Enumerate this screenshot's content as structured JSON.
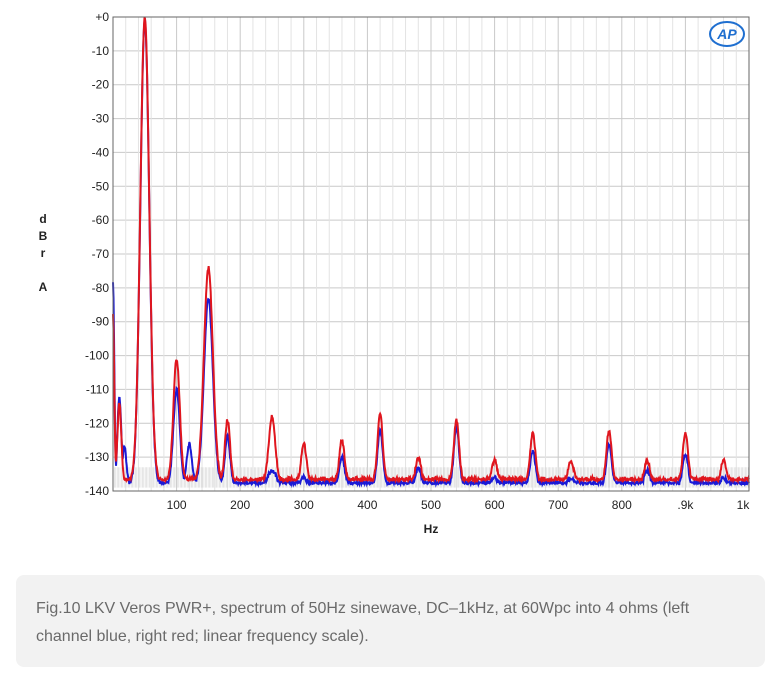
{
  "chart_data": {
    "type": "line",
    "title": "",
    "xlabel": "Hz",
    "ylabel": [
      "d",
      "B",
      "r",
      "",
      "A"
    ],
    "xlim": [
      0,
      1000
    ],
    "ylim": [
      -140,
      0
    ],
    "grid": true,
    "x_ticks": [
      {
        "value": 100,
        "label": "100"
      },
      {
        "value": 200,
        "label": "200"
      },
      {
        "value": 300,
        "label": "300"
      },
      {
        "value": 400,
        "label": "400"
      },
      {
        "value": 500,
        "label": "500"
      },
      {
        "value": 600,
        "label": "600"
      },
      {
        "value": 700,
        "label": "700"
      },
      {
        "value": 800,
        "label": "800"
      },
      {
        "value": 900,
        "label": ".9k"
      },
      {
        "value": 1000,
        "label": "1k"
      }
    ],
    "y_ticks": [
      {
        "value": 0,
        "label": "+0"
      },
      {
        "value": -10,
        "label": "-10"
      },
      {
        "value": -20,
        "label": "-20"
      },
      {
        "value": -30,
        "label": "-30"
      },
      {
        "value": -40,
        "label": "-40"
      },
      {
        "value": -50,
        "label": "-50"
      },
      {
        "value": -60,
        "label": "-60"
      },
      {
        "value": -70,
        "label": "-70"
      },
      {
        "value": -80,
        "label": "-80"
      },
      {
        "value": -90,
        "label": "-90"
      },
      {
        "value": -100,
        "label": "-100"
      },
      {
        "value": -110,
        "label": "-110"
      },
      {
        "value": -120,
        "label": "-120"
      },
      {
        "value": -130,
        "label": "-130"
      },
      {
        "value": -140,
        "label": "-140"
      }
    ],
    "baseline": -138,
    "series": [
      {
        "name": "Left channel",
        "color": "#1a1ad6",
        "floor": -138,
        "peaks": [
          {
            "x": 0,
            "y": -78,
            "w": 2
          },
          {
            "x": 10,
            "y": -112,
            "w": 3
          },
          {
            "x": 18,
            "y": -127,
            "w": 3
          },
          {
            "x": 50,
            "y": -1,
            "w": 7
          },
          {
            "x": 100,
            "y": -110,
            "w": 5
          },
          {
            "x": 120,
            "y": -126,
            "w": 4
          },
          {
            "x": 150,
            "y": -83,
            "w": 7
          },
          {
            "x": 180,
            "y": -124,
            "w": 4
          },
          {
            "x": 250,
            "y": -134,
            "w": 6
          },
          {
            "x": 300,
            "y": -136,
            "w": 4
          },
          {
            "x": 360,
            "y": -130,
            "w": 4
          },
          {
            "x": 420,
            "y": -122,
            "w": 4
          },
          {
            "x": 480,
            "y": -133,
            "w": 4
          },
          {
            "x": 540,
            "y": -121,
            "w": 4
          },
          {
            "x": 600,
            "y": -136,
            "w": 4
          },
          {
            "x": 660,
            "y": -128,
            "w": 4
          },
          {
            "x": 720,
            "y": -136,
            "w": 4
          },
          {
            "x": 780,
            "y": -126,
            "w": 4
          },
          {
            "x": 840,
            "y": -134,
            "w": 4
          },
          {
            "x": 900,
            "y": -129,
            "w": 4
          },
          {
            "x": 960,
            "y": -136,
            "w": 4
          }
        ]
      },
      {
        "name": "Right channel",
        "color": "#e0161e",
        "floor": -137,
        "peaks": [
          {
            "x": 0,
            "y": -88,
            "w": 2
          },
          {
            "x": 10,
            "y": -114,
            "w": 3
          },
          {
            "x": 50,
            "y": 0,
            "w": 7
          },
          {
            "x": 100,
            "y": -101,
            "w": 5
          },
          {
            "x": 150,
            "y": -74,
            "w": 7
          },
          {
            "x": 180,
            "y": -119,
            "w": 4
          },
          {
            "x": 250,
            "y": -118,
            "w": 5
          },
          {
            "x": 300,
            "y": -126,
            "w": 4
          },
          {
            "x": 360,
            "y": -125,
            "w": 4
          },
          {
            "x": 420,
            "y": -117,
            "w": 4
          },
          {
            "x": 480,
            "y": -130,
            "w": 4
          },
          {
            "x": 540,
            "y": -119,
            "w": 4
          },
          {
            "x": 600,
            "y": -131,
            "w": 4
          },
          {
            "x": 660,
            "y": -123,
            "w": 4
          },
          {
            "x": 720,
            "y": -131,
            "w": 4
          },
          {
            "x": 780,
            "y": -122,
            "w": 4
          },
          {
            "x": 840,
            "y": -131,
            "w": 4
          },
          {
            "x": 900,
            "y": -123,
            "w": 4
          },
          {
            "x": 960,
            "y": -131,
            "w": 4
          }
        ]
      }
    ],
    "logo_text": "AP"
  },
  "caption": {
    "text": "Fig.10 LKV Veros PWR+, spectrum of 50Hz sinewave, DC–1kHz, at 60Wpc into 4 ohms (left channel blue, right red; linear frequency scale)."
  }
}
